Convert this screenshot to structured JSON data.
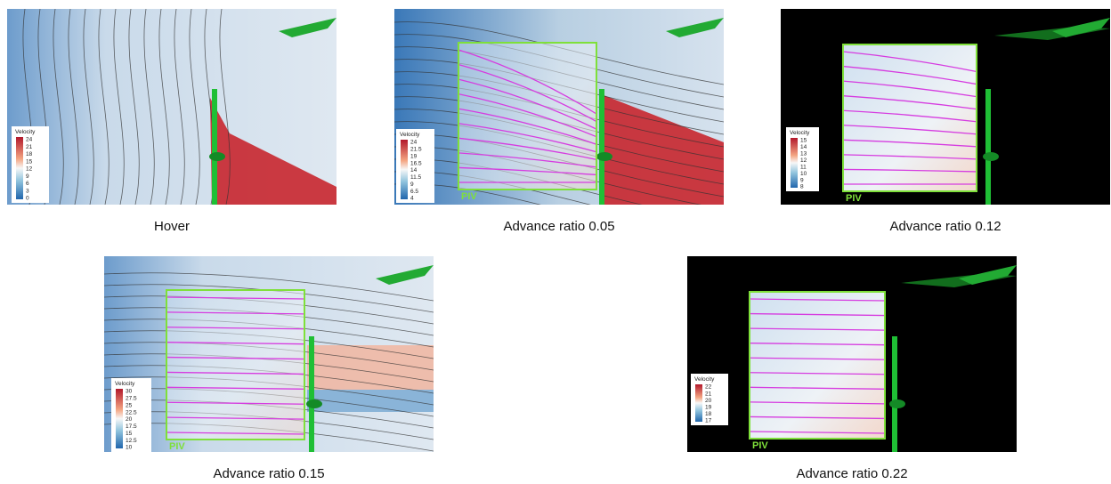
{
  "panels": [
    {
      "caption": "Hover",
      "colorbar": {
        "title": "Velocity",
        "ticks": [
          "24",
          "21",
          "18",
          "15",
          "12",
          "9",
          "6",
          "3",
          "0"
        ]
      }
    },
    {
      "caption": "Advance ratio 0.05",
      "piv_label": "PIV",
      "colorbar": {
        "title": "Velocity",
        "ticks": [
          "24",
          "21.5",
          "19",
          "16.5",
          "14",
          "11.5",
          "9",
          "6.5",
          "4"
        ]
      }
    },
    {
      "caption": "Advance ratio 0.12",
      "piv_label": "PIV",
      "colorbar": {
        "title": "Velocity",
        "ticks": [
          "15",
          "14",
          "13",
          "12",
          "11",
          "10",
          "9",
          "8"
        ]
      }
    },
    {
      "caption": "Advance ratio 0.15",
      "piv_label": "PIV",
      "colorbar": {
        "title": "Velocity",
        "ticks": [
          "30",
          "27.5",
          "25",
          "22.5",
          "20",
          "17.5",
          "15",
          "12.5",
          "10"
        ]
      }
    },
    {
      "caption": "Advance ratio 0.22",
      "piv_label": "PIV",
      "colorbar": {
        "title": "Velocity",
        "ticks": [
          "22",
          "21",
          "20",
          "19",
          "18",
          "17"
        ]
      }
    }
  ]
}
